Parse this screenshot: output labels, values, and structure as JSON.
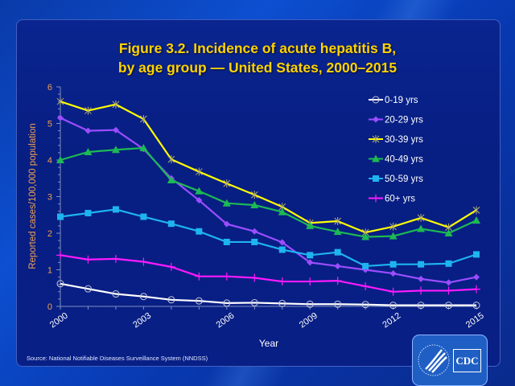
{
  "chart_data": {
    "type": "line",
    "title_line1": "Figure 3.2. Incidence of acute hepatitis B,",
    "title_line2": "by age group — United States, 2000–2015",
    "xlabel": "Year",
    "ylabel": "Reported  cases/100,000 population",
    "x": [
      2000,
      2001,
      2002,
      2003,
      2004,
      2005,
      2006,
      2007,
      2008,
      2009,
      2010,
      2011,
      2012,
      2013,
      2014,
      2015
    ],
    "x_tick_labels": [
      "2000",
      "2003",
      "2006",
      "2009",
      "2012",
      "2015"
    ],
    "x_tick_values": [
      2000,
      2003,
      2006,
      2009,
      2012,
      2015
    ],
    "ylim": [
      0,
      6
    ],
    "y_tick_labels": [
      "0",
      "1",
      "2",
      "3",
      "4",
      "5",
      "6"
    ],
    "y_minor_step": 0.2,
    "grid": false,
    "legend_position": "top-right",
    "series": [
      {
        "name": "0-19 yrs",
        "color": "#ffffff",
        "marker": "circle",
        "values": [
          0.62,
          0.48,
          0.34,
          0.27,
          0.18,
          0.15,
          0.09,
          0.1,
          0.08,
          0.06,
          0.06,
          0.05,
          0.03,
          0.03,
          0.03,
          0.03
        ]
      },
      {
        "name": "20-29 yrs",
        "color": "#9b4dff",
        "marker": "diamond",
        "values": [
          5.15,
          4.8,
          4.82,
          4.3,
          3.5,
          2.9,
          2.25,
          2.05,
          1.75,
          1.2,
          1.1,
          1.0,
          0.9,
          0.75,
          0.65,
          0.8
        ]
      },
      {
        "name": "30-39 yrs",
        "color": "#ffff00",
        "marker": "star",
        "values": [
          5.6,
          5.35,
          5.52,
          5.12,
          4.02,
          3.68,
          3.36,
          3.05,
          2.72,
          2.28,
          2.33,
          2.02,
          2.18,
          2.42,
          2.16,
          2.63
        ]
      },
      {
        "name": "40-49 yrs",
        "color": "#1db954",
        "marker": "triangle",
        "values": [
          4.0,
          4.22,
          4.28,
          4.33,
          3.45,
          3.15,
          2.82,
          2.77,
          2.58,
          2.2,
          2.04,
          1.9,
          1.92,
          2.12,
          2.0,
          2.35
        ]
      },
      {
        "name": "50-59 yrs",
        "color": "#1eb4f0",
        "marker": "square",
        "values": [
          2.45,
          2.55,
          2.65,
          2.45,
          2.26,
          2.05,
          1.76,
          1.76,
          1.55,
          1.4,
          1.48,
          1.1,
          1.15,
          1.15,
          1.17,
          1.42
        ]
      },
      {
        "name": "60+ yrs",
        "color": "#ff1aff",
        "marker": "plus",
        "values": [
          1.4,
          1.28,
          1.3,
          1.22,
          1.08,
          0.82,
          0.82,
          0.78,
          0.68,
          0.68,
          0.7,
          0.55,
          0.4,
          0.43,
          0.43,
          0.47
        ]
      }
    ],
    "source": "Source: National Notifiable Diseases Surveillance System (NNDSS)"
  },
  "logo": {
    "text": "CDC",
    "name": "CDC / HHS logo"
  }
}
